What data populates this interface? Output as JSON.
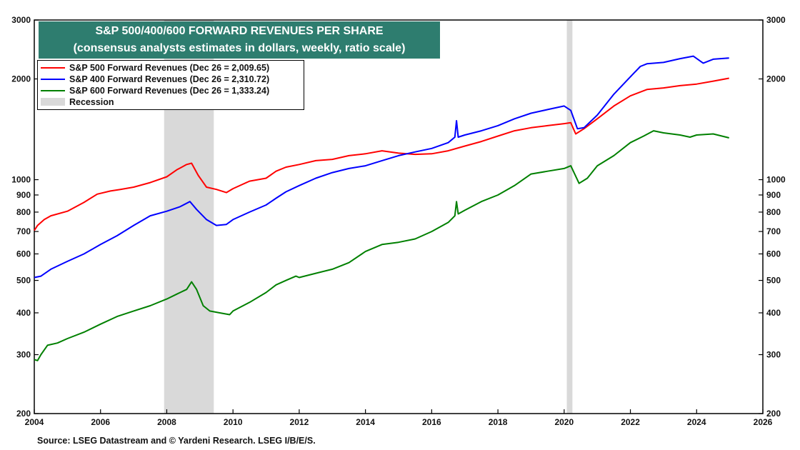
{
  "chart_data": {
    "type": "line",
    "title": "S&P 500/400/600 FORWARD REVENUES PER SHARE",
    "subtitle": "(consensus analysts estimates in dollars, weekly, ratio scale)",
    "yscale": "log",
    "ylim": [
      200,
      3000
    ],
    "xlim": [
      2004,
      2026
    ],
    "y_ticks": [
      200,
      300,
      400,
      500,
      600,
      700,
      800,
      900,
      1000,
      2000,
      3000
    ],
    "y_tick_labels": [
      "200",
      "300",
      "400",
      "500",
      "600",
      "700",
      "800",
      "900",
      "1000",
      "2000",
      "3000"
    ],
    "x_ticks": [
      2004,
      2006,
      2008,
      2010,
      2012,
      2014,
      2016,
      2018,
      2020,
      2022,
      2024,
      2026
    ],
    "x_tick_labels": [
      "2004",
      "2006",
      "2008",
      "2010",
      "2012",
      "2014",
      "2016",
      "2018",
      "2020",
      "2022",
      "2024",
      "2026"
    ],
    "legend_placement": "top-left",
    "recessions": [
      {
        "start": 2007.92,
        "end": 2009.42
      },
      {
        "start": 2020.08,
        "end": 2020.25
      }
    ],
    "series": [
      {
        "name": "S&P 500 Forward Revenues (Dec 26 = 2,009.65)",
        "color": "#ff0000",
        "x": [
          2004.0,
          2004.1,
          2004.3,
          2004.5,
          2005.0,
          2005.5,
          2005.9,
          2006.3,
          2006.6,
          2007.0,
          2007.5,
          2008.0,
          2008.3,
          2008.6,
          2008.75,
          2008.95,
          2009.2,
          2009.5,
          2009.8,
          2010.0,
          2010.5,
          2011.0,
          2011.3,
          2011.6,
          2012.0,
          2012.5,
          2013.0,
          2013.5,
          2014.0,
          2014.5,
          2015.0,
          2015.5,
          2016.0,
          2016.5,
          2017.0,
          2017.5,
          2018.0,
          2018.5,
          2019.0,
          2019.5,
          2020.0,
          2020.2,
          2020.35,
          2020.6,
          2021.0,
          2021.5,
          2022.0,
          2022.5,
          2023.0,
          2023.5,
          2024.0,
          2024.5,
          2024.98
        ],
        "values": [
          705,
          730,
          760,
          780,
          805,
          855,
          905,
          925,
          935,
          950,
          980,
          1020,
          1070,
          1110,
          1120,
          1030,
          950,
          935,
          915,
          940,
          990,
          1010,
          1060,
          1090,
          1110,
          1140,
          1150,
          1180,
          1195,
          1220,
          1200,
          1190,
          1195,
          1220,
          1260,
          1300,
          1350,
          1400,
          1430,
          1450,
          1470,
          1480,
          1370,
          1420,
          1520,
          1660,
          1780,
          1860,
          1880,
          1910,
          1930,
          1970,
          2010
        ]
      },
      {
        "name": "S&P 400 Forward Revenues (Dec 26 = 2,310.72)",
        "color": "#0000ff",
        "x": [
          2004.0,
          2004.2,
          2004.5,
          2005.0,
          2005.5,
          2006.0,
          2006.5,
          2007.0,
          2007.5,
          2008.0,
          2008.4,
          2008.7,
          2008.9,
          2009.2,
          2009.5,
          2009.8,
          2010.0,
          2010.5,
          2011.0,
          2011.3,
          2011.6,
          2012.0,
          2012.5,
          2013.0,
          2013.5,
          2014.0,
          2014.5,
          2015.0,
          2015.5,
          2016.0,
          2016.5,
          2016.7,
          2016.75,
          2016.8,
          2017.0,
          2017.5,
          2018.0,
          2018.5,
          2019.0,
          2019.5,
          2020.0,
          2020.2,
          2020.4,
          2020.6,
          2021.0,
          2021.5,
          2022.0,
          2022.3,
          2022.5,
          2023.0,
          2023.5,
          2023.9,
          2024.2,
          2024.5,
          2024.98
        ],
        "values": [
          510,
          515,
          540,
          570,
          600,
          640,
          680,
          730,
          780,
          805,
          830,
          860,
          815,
          760,
          730,
          735,
          760,
          800,
          840,
          880,
          920,
          960,
          1010,
          1050,
          1080,
          1100,
          1140,
          1180,
          1210,
          1240,
          1290,
          1340,
          1500,
          1340,
          1360,
          1400,
          1450,
          1520,
          1580,
          1620,
          1660,
          1610,
          1420,
          1430,
          1560,
          1800,
          2030,
          2180,
          2220,
          2240,
          2300,
          2340,
          2230,
          2290,
          2310
        ]
      },
      {
        "name": "S&P 600 Forward Revenues (Dec 26 = 1,333.24)",
        "color": "#008000",
        "x": [
          2004.0,
          2004.1,
          2004.2,
          2004.4,
          2004.7,
          2005.0,
          2005.5,
          2006.0,
          2006.5,
          2007.0,
          2007.5,
          2008.0,
          2008.3,
          2008.6,
          2008.75,
          2008.9,
          2009.1,
          2009.3,
          2009.6,
          2009.9,
          2010.0,
          2010.5,
          2011.0,
          2011.3,
          2011.6,
          2011.9,
          2012.0,
          2012.5,
          2013.0,
          2013.5,
          2014.0,
          2014.5,
          2015.0,
          2015.5,
          2016.0,
          2016.5,
          2016.7,
          2016.75,
          2016.8,
          2017.0,
          2017.5,
          2018.0,
          2018.5,
          2019.0,
          2019.5,
          2020.0,
          2020.2,
          2020.45,
          2020.7,
          2021.0,
          2021.5,
          2022.0,
          2022.4,
          2022.7,
          2023.0,
          2023.5,
          2023.8,
          2024.0,
          2024.5,
          2024.98
        ],
        "values": [
          290,
          288,
          300,
          320,
          325,
          335,
          350,
          370,
          390,
          405,
          420,
          440,
          455,
          470,
          495,
          470,
          420,
          405,
          400,
          395,
          405,
          430,
          460,
          485,
          500,
          515,
          510,
          525,
          540,
          565,
          610,
          640,
          650,
          665,
          700,
          745,
          780,
          860,
          790,
          810,
          860,
          900,
          960,
          1040,
          1060,
          1080,
          1100,
          975,
          1010,
          1100,
          1180,
          1290,
          1350,
          1400,
          1380,
          1360,
          1340,
          1360,
          1370,
          1333
        ]
      }
    ]
  },
  "legend": {
    "items": [
      {
        "label": "S&P 500 Forward Revenues (Dec 26 = 2,009.65)",
        "color": "#ff0000"
      },
      {
        "label": "S&P 400 Forward Revenues (Dec 26 = 2,310.72)",
        "color": "#0000ff"
      },
      {
        "label": "S&P 600 Forward Revenues (Dec 26 = 1,333.24)",
        "color": "#008000"
      }
    ],
    "recession_label": "Recession",
    "recession_color": "#d9d9d9"
  },
  "source": "Source: LSEG Datastream and © Yardeni Research. LSEG I/B/E/S."
}
